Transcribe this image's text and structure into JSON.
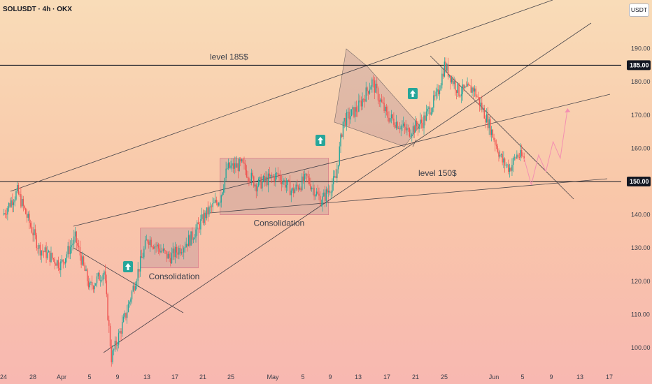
{
  "header": {
    "symbol": "SOLUSDT · 4h · OKX",
    "unit_badge": "USDT"
  },
  "colors": {
    "bull": "#26a69a",
    "bear": "#ef5350",
    "zone_fill": "#b28b96",
    "projection": "#f48fb1",
    "price_tag_bg": "#131722"
  },
  "chart_data": {
    "type": "candlestick",
    "timeframe": "4h",
    "y_axis": {
      "ticks": [
        100,
        110,
        120,
        130,
        140,
        150,
        160,
        170,
        180,
        190
      ],
      "ylim": [
        96,
        200
      ]
    },
    "x_axis": {
      "tick_labels": [
        "24",
        "28",
        "Apr",
        "5",
        "9",
        "13",
        "17",
        "21",
        "25",
        "May",
        "5",
        "9",
        "13",
        "17",
        "21",
        "25",
        "Jun",
        "5",
        "9",
        "13",
        "17"
      ]
    },
    "horizontal_levels": [
      {
        "price": 185,
        "label": "level 185$",
        "tag": "185.00"
      },
      {
        "price": 150,
        "label": "level 150$",
        "tag": "150.00"
      }
    ],
    "zones": [
      {
        "label": "Consolidation",
        "from": "Apr 11",
        "to": "Apr 19",
        "low": 124,
        "high": 136
      },
      {
        "label": "Consolidation",
        "from": "Apr 22",
        "to": "May 7",
        "low": 140,
        "high": 157
      }
    ],
    "breakout_markers": [
      "Apr 10",
      "May 8",
      "May 20"
    ],
    "swing_points": [
      {
        "t": "Mar 23",
        "p": 140
      },
      {
        "t": "Mar 25",
        "p": 147
      },
      {
        "t": "Mar 28",
        "p": 130
      },
      {
        "t": "Mar 31",
        "p": 125
      },
      {
        "t": "Apr 2",
        "p": 133
      },
      {
        "t": "Apr 4",
        "p": 118
      },
      {
        "t": "Apr 6",
        "p": 123
      },
      {
        "t": "Apr 7",
        "p": 97
      },
      {
        "t": "Apr 9",
        "p": 110
      },
      {
        "t": "Apr 10",
        "p": 118
      },
      {
        "t": "Apr 12",
        "p": 133
      },
      {
        "t": "Apr 15",
        "p": 127
      },
      {
        "t": "Apr 18",
        "p": 133
      },
      {
        "t": "Apr 20",
        "p": 140
      },
      {
        "t": "Apr 22",
        "p": 145
      },
      {
        "t": "Apr 23",
        "p": 154
      },
      {
        "t": "Apr 25",
        "p": 155
      },
      {
        "t": "Apr 27",
        "p": 149
      },
      {
        "t": "Apr 30",
        "p": 152
      },
      {
        "t": "May 2",
        "p": 147
      },
      {
        "t": "May 4",
        "p": 151
      },
      {
        "t": "May 6",
        "p": 144
      },
      {
        "t": "May 8",
        "p": 151
      },
      {
        "t": "May 9",
        "p": 168
      },
      {
        "t": "May 11",
        "p": 172
      },
      {
        "t": "May 13",
        "p": 180
      },
      {
        "t": "May 15",
        "p": 170
      },
      {
        "t": "May 18",
        "p": 165
      },
      {
        "t": "May 20",
        "p": 168
      },
      {
        "t": "May 22",
        "p": 176
      },
      {
        "t": "May 23",
        "p": 185
      },
      {
        "t": "May 25",
        "p": 177
      },
      {
        "t": "May 27",
        "p": 178
      },
      {
        "t": "May 29",
        "p": 168
      },
      {
        "t": "May 31",
        "p": 156
      },
      {
        "t": "Jun 1",
        "p": 154
      },
      {
        "t": "Jun 2",
        "p": 158
      },
      {
        "t": "Jun 3",
        "p": 157
      }
    ],
    "projection": [
      {
        "t": "Jun 3",
        "p": 157
      },
      {
        "t": "Jun 4",
        "p": 149
      },
      {
        "t": "Jun 5",
        "p": 158
      },
      {
        "t": "Jun 6",
        "p": 153
      },
      {
        "t": "Jun 7",
        "p": 162
      },
      {
        "t": "Jun 8",
        "p": 157
      },
      {
        "t": "Jun 9",
        "p": 172
      }
    ]
  }
}
